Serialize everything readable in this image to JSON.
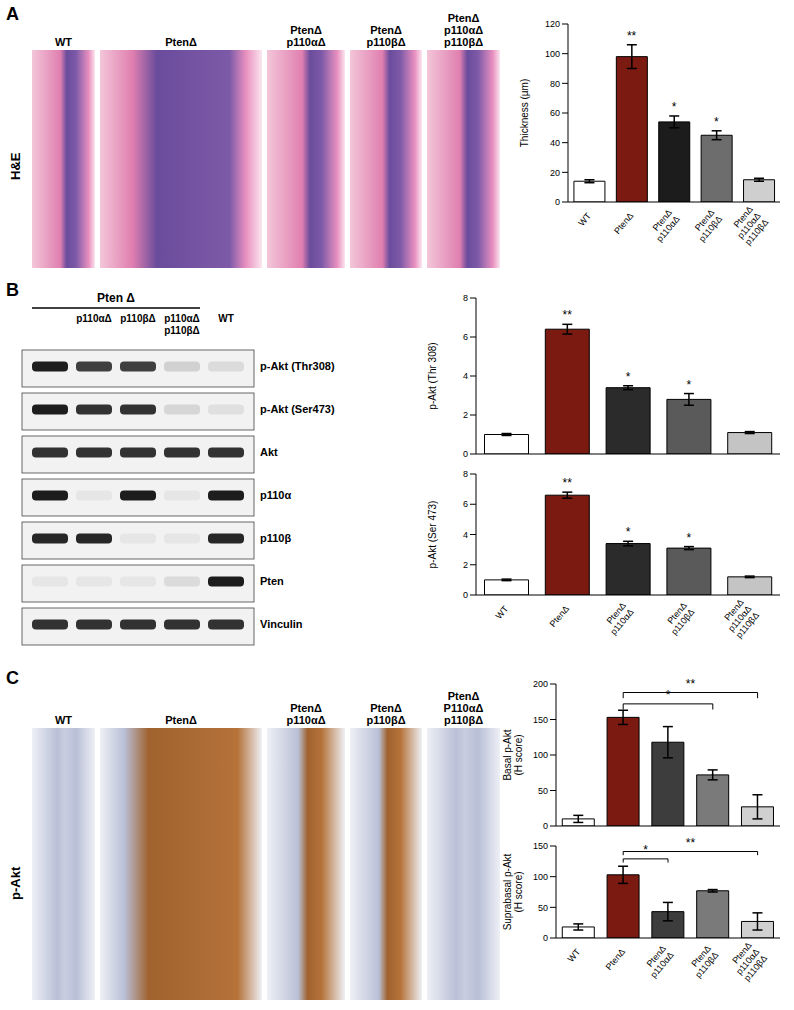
{
  "figure": {
    "panels": [
      {
        "label": "A",
        "row_label": "H&E",
        "images": [
          "WT",
          "PtenΔ",
          "PtenΔ p110αΔ",
          "PtenΔ p110βΔ",
          "PtenΔ p110αΔ p110βΔ"
        ]
      },
      {
        "label": "B",
        "blot": {
          "header": "Pten Δ",
          "lanes": [
            null,
            "p110αΔ",
            "p110βΔ",
            "p110αΔ p110βΔ",
            "WT"
          ],
          "rows": [
            {
              "label": "p-Akt (Thr308)",
              "intensity": [
                0.95,
                0.8,
                0.8,
                0.15,
                0.1
              ]
            },
            {
              "label": "p-Akt (Ser473)",
              "intensity": [
                0.95,
                0.85,
                0.85,
                0.12,
                0.08
              ]
            },
            {
              "label": "Akt",
              "intensity": [
                0.85,
                0.85,
                0.85,
                0.85,
                0.85
              ]
            },
            {
              "label": "p110α",
              "intensity": [
                0.95,
                0.05,
                0.95,
                0.05,
                0.95
              ]
            },
            {
              "label": "p110β",
              "intensity": [
                0.9,
                0.9,
                0.05,
                0.05,
                0.9
              ]
            },
            {
              "label": "Pten",
              "intensity": [
                0.05,
                0.05,
                0.05,
                0.1,
                0.95
              ]
            },
            {
              "label": "Vinculin",
              "intensity": [
                0.85,
                0.85,
                0.85,
                0.85,
                0.85
              ]
            }
          ]
        }
      },
      {
        "label": "C",
        "row_label": "p-Akt",
        "images": [
          "WT",
          "PtenΔ",
          "PtenΔ p110αΔ",
          "PtenΔ p110βΔ",
          "PtenΔ P110αΔ p110βΔ"
        ]
      }
    ]
  },
  "chart_data": [
    {
      "type": "bar",
      "y_label": "Thickness (µm)",
      "categories": [
        "WT",
        "PtenΔ",
        "PtenΔ p110αΔ",
        "PtenΔ p110βΔ",
        "PtenΔ p110αΔ p110βΔ"
      ],
      "values": [
        14,
        98,
        54,
        45,
        15
      ],
      "errors": [
        1,
        8,
        4,
        3,
        1
      ],
      "significance": [
        null,
        "**",
        "*",
        "*",
        null
      ],
      "colors": [
        "#ffffff",
        "#7a1a10",
        "#1c1c1c",
        "#6d6d6d",
        "#cfcfcf"
      ],
      "ylim": [
        0,
        120
      ],
      "yticks": [
        0,
        20,
        40,
        60,
        80,
        100,
        120
      ]
    },
    {
      "type": "bar",
      "y_label": "p-Akt  (Thr 308)",
      "categories": [
        "WT",
        "PtenΔ",
        "PtenΔ p110αΔ",
        "PtenΔ p110βΔ",
        "PtenΔ p110αΔ p110βΔ"
      ],
      "values": [
        1,
        6.4,
        3.4,
        2.8,
        1.1
      ],
      "errors": [
        0.05,
        0.25,
        0.1,
        0.3,
        0.05
      ],
      "significance": [
        null,
        "**",
        "*",
        "*",
        null
      ],
      "colors": [
        "#ffffff",
        "#7a1a10",
        "#2b2b2b",
        "#5a5a5a",
        "#c4c4c4"
      ],
      "ylim": [
        0,
        8
      ],
      "yticks": [
        0,
        2,
        4,
        6,
        8
      ],
      "tick_labels": "y"
    },
    {
      "type": "bar",
      "y_label": "p-Akt  (Ser 473)",
      "categories": [
        "WT",
        "PtenΔ",
        "PtenΔ p110αΔ",
        "PtenΔ p110βΔ",
        "PtenΔ p110αΔ p110βΔ"
      ],
      "values": [
        1,
        6.6,
        3.4,
        3.1,
        1.2
      ],
      "errors": [
        0.05,
        0.2,
        0.15,
        0.1,
        0.05
      ],
      "significance": [
        null,
        "**",
        "*",
        "*",
        null
      ],
      "colors": [
        "#ffffff",
        "#7a1a10",
        "#2b2b2b",
        "#5a5a5a",
        "#c4c4c4"
      ],
      "ylim": [
        0,
        8
      ],
      "yticks": [
        0,
        2,
        4,
        6,
        8
      ]
    },
    {
      "type": "bar",
      "y_label": "Basal p-Akt (H score)",
      "categories": [
        "WT",
        "PtenΔ",
        "PtenΔ p110αΔ",
        "PtenΔ p110βΔ",
        "PtenΔ p110αΔ p110βΔ"
      ],
      "values": [
        10,
        153,
        118,
        72,
        27
      ],
      "errors": [
        5,
        10,
        22,
        7,
        17
      ],
      "comparisons": [
        {
          "from": "PtenΔ",
          "to": "PtenΔ p110βΔ",
          "label": "*"
        },
        {
          "from": "PtenΔ",
          "to": "PtenΔ p110αΔ p110βΔ",
          "label": "**"
        }
      ],
      "colors": [
        "#ffffff",
        "#7a1a10",
        "#3d3d3d",
        "#7a7a7a",
        "#d0d0d0"
      ],
      "ylim": [
        0,
        200
      ],
      "yticks": [
        0,
        50,
        100,
        150,
        200
      ],
      "tick_labels": "y"
    },
    {
      "type": "bar",
      "y_label": "Suprabasal p-Akt (H score)",
      "categories": [
        "WT",
        "PtenΔ",
        "PtenΔ p110αΔ",
        "PtenΔ p110βΔ",
        "PtenΔ p110αΔ p110βΔ"
      ],
      "values": [
        18,
        103,
        43,
        77,
        27
      ],
      "errors": [
        5,
        14,
        15,
        2,
        14
      ],
      "comparisons": [
        {
          "from": "PtenΔ",
          "to": "PtenΔ p110αΔ",
          "label": "*"
        },
        {
          "from": "PtenΔ",
          "to": "PtenΔ p110αΔ p110βΔ",
          "label": "**"
        }
      ],
      "colors": [
        "#ffffff",
        "#7a1a10",
        "#3d3d3d",
        "#7a7a7a",
        "#d0d0d0"
      ],
      "ylim": [
        0,
        150
      ],
      "yticks": [
        0,
        50,
        100,
        150
      ]
    }
  ]
}
